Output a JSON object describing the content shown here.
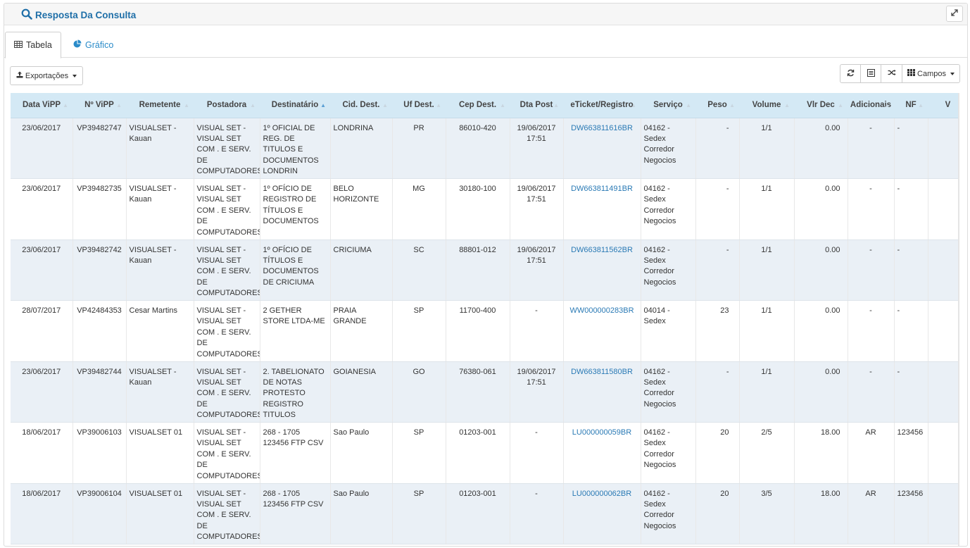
{
  "panel": {
    "title": "Resposta Da Consulta"
  },
  "tabs": [
    {
      "label": "Tabela"
    },
    {
      "label": "Gráfico"
    }
  ],
  "toolbar": {
    "export_label": "Exportações",
    "fields_label": "Campos"
  },
  "colors": {
    "header_bg": "#d4e9f5",
    "link": "#2a7ab5",
    "title": "#1f6fa8",
    "row_alt": "#eaf0f6"
  },
  "table": {
    "columns": [
      "Data ViPP",
      "Nº ViPP",
      "Remetente",
      "Postadora",
      "Destinatário",
      "Cid. Dest.",
      "Uf Dest.",
      "Cep Dest.",
      "Dta Post",
      "eTicket/Registro",
      "Serviço",
      "Peso",
      "Volume",
      "Vlr Dec",
      "Adicionais",
      "NF",
      "V"
    ],
    "sorted_column": "Destinatário",
    "rows": [
      {
        "data": "23/06/2017",
        "num": "VP39482747",
        "rem": "VISUALSET - Kauan",
        "post": "VISUAL SET - VISUAL SET COM . E SERV. DE COMPUTADORES",
        "dest": "1º OFICIAL DE REG. DE TITULOS E DOCUMENTOS LONDRIN",
        "cid": "LONDRINA",
        "uf": "PR",
        "cep": "86010-420",
        "dta": "19/06/2017 17:51",
        "ticket": "DW663811616BR",
        "serv": "04162 - Sedex Corredor Negocios",
        "peso": "-",
        "vol": "1/1",
        "vlr": "0.00",
        "adic": "-",
        "nf": "-"
      },
      {
        "data": "23/06/2017",
        "num": "VP39482735",
        "rem": "VISUALSET - Kauan",
        "post": "VISUAL SET - VISUAL SET COM . E SERV. DE COMPUTADORES",
        "dest": "1º OFÍCIO DE REGISTRO DE TÍTULOS E DOCUMENTOS",
        "cid": "BELO HORIZONTE",
        "uf": "MG",
        "cep": "30180-100",
        "dta": "19/06/2017 17:51",
        "ticket": "DW663811491BR",
        "serv": "04162 - Sedex Corredor Negocios",
        "peso": "-",
        "vol": "1/1",
        "vlr": "0.00",
        "adic": "-",
        "nf": "-"
      },
      {
        "data": "23/06/2017",
        "num": "VP39482742",
        "rem": "VISUALSET - Kauan",
        "post": "VISUAL SET - VISUAL SET COM . E SERV. DE COMPUTADORES",
        "dest": "1º OFÍCIO DE TÍTULOS E DOCUMENTOS DE CRICIUMA",
        "cid": "CRICIUMA",
        "uf": "SC",
        "cep": "88801-012",
        "dta": "19/06/2017 17:51",
        "ticket": "DW663811562BR",
        "serv": "04162 - Sedex Corredor Negocios",
        "peso": "-",
        "vol": "1/1",
        "vlr": "0.00",
        "adic": "-",
        "nf": "-"
      },
      {
        "data": "28/07/2017",
        "num": "VP42484353",
        "rem": "Cesar Martins",
        "post": "VISUAL SET - VISUAL SET COM . E SERV. DE COMPUTADORES",
        "dest": "2 GETHER STORE LTDA-ME",
        "cid": "PRAIA GRANDE",
        "uf": "SP",
        "cep": "11700-400",
        "dta": "-",
        "ticket": "WW000000283BR",
        "serv": "04014 - Sedex",
        "peso": "23",
        "vol": "1/1",
        "vlr": "0.00",
        "adic": "-",
        "nf": "-"
      },
      {
        "data": "23/06/2017",
        "num": "VP39482744",
        "rem": "VISUALSET - Kauan",
        "post": "VISUAL SET - VISUAL SET COM . E SERV. DE COMPUTADORES",
        "dest": "2. TABELIONATO DE NOTAS PROTESTO REGISTRO TITULOS",
        "cid": "GOIANESIA",
        "uf": "GO",
        "cep": "76380-061",
        "dta": "19/06/2017 17:51",
        "ticket": "DW663811580BR",
        "serv": "04162 - Sedex Corredor Negocios",
        "peso": "-",
        "vol": "1/1",
        "vlr": "0.00",
        "adic": "-",
        "nf": "-"
      },
      {
        "data": "18/06/2017",
        "num": "VP39006103",
        "rem": "VISUALSET 01",
        "post": "VISUAL SET - VISUAL SET COM . E SERV. DE COMPUTADORES",
        "dest": "268 - 1705 123456 FTP CSV",
        "cid": "Sao Paulo",
        "uf": "SP",
        "cep": "01203-001",
        "dta": "-",
        "ticket": "LU000000059BR",
        "serv": "04162 - Sedex Corredor Negocios",
        "peso": "20",
        "vol": "2/5",
        "vlr": "18.00",
        "adic": "AR",
        "nf": "123456"
      },
      {
        "data": "18/06/2017",
        "num": "VP39006104",
        "rem": "VISUALSET 01",
        "post": "VISUAL SET - VISUAL SET COM . E SERV. DE COMPUTADORES",
        "dest": "268 - 1705 123456 FTP CSV",
        "cid": "Sao Paulo",
        "uf": "SP",
        "cep": "01203-001",
        "dta": "-",
        "ticket": "LU000000062BR",
        "serv": "04162 - Sedex Corredor Negocios",
        "peso": "20",
        "vol": "3/5",
        "vlr": "18.00",
        "adic": "AR",
        "nf": "123456"
      }
    ]
  }
}
